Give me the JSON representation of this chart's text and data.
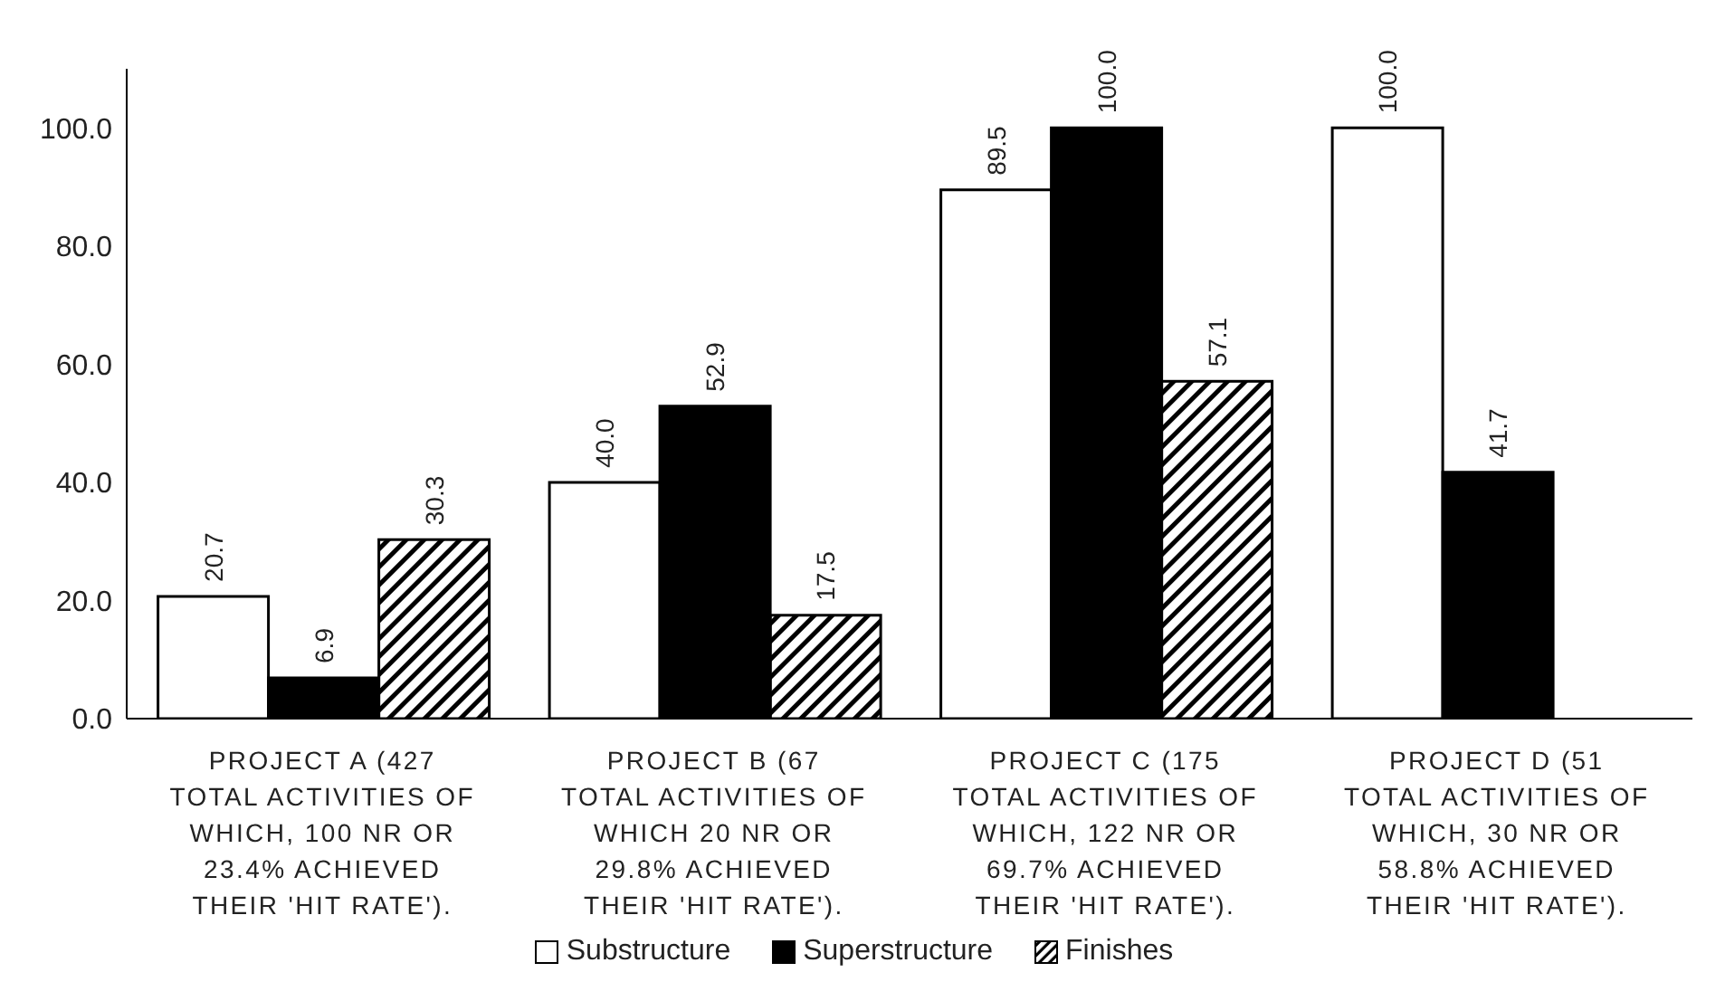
{
  "chart_data": {
    "type": "bar",
    "categories": [
      "PROJECT A (427 TOTAL ACTIVITIES OF WHICH, 100 NR OR 23.4% ACHIEVED THEIR 'HIT RATE').",
      "PROJECT B (67 TOTAL ACTIVITIES OF WHICH 20 NR OR 29.8% ACHIEVED THEIR 'HIT RATE').",
      "PROJECT C (175 TOTAL ACTIVITIES OF WHICH, 122 NR OR 69.7% ACHIEVED THEIR 'HIT RATE').",
      "PROJECT D (51 TOTAL ACTIVITIES OF WHICH, 30 NR OR 58.8% ACHIEVED THEIR 'HIT RATE')."
    ],
    "series": [
      {
        "name": "Substructure",
        "color": "#ffffff",
        "values": [
          20.7,
          40.0,
          89.5,
          100.0
        ],
        "value_labels": [
          "20.7",
          "40.0",
          "89.5",
          "100.0"
        ]
      },
      {
        "name": "Superstructure",
        "color": "#000000",
        "values": [
          6.9,
          52.9,
          100.0,
          41.7
        ],
        "value_labels": [
          "6.9",
          "52.9",
          "100.0",
          "41.7"
        ]
      },
      {
        "name": "Finishes",
        "color": "#000000",
        "values": [
          30.3,
          17.5,
          57.1,
          null
        ],
        "value_labels": [
          "30.3",
          "17.5",
          "57.1",
          null
        ]
      }
    ],
    "ylim": [
      0,
      110
    ],
    "yticks": [
      {
        "value": 0,
        "label": "0.0"
      },
      {
        "value": 20,
        "label": "20.0"
      },
      {
        "value": 40,
        "label": "40.0"
      },
      {
        "value": 60,
        "label": "60.0"
      },
      {
        "value": 80,
        "label": "80.0"
      },
      {
        "value": 100,
        "label": "100.0"
      }
    ],
    "grid": false,
    "legend": "bottom"
  }
}
